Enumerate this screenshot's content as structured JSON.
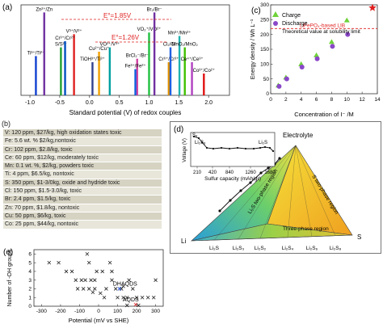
{
  "panel_a": {
    "label": "(a)",
    "xlabel": "Standard potential (V) of redox couples",
    "ticks": [
      "-1.0",
      "-0.5",
      "0.0",
      "0.5",
      "1.0",
      "1.5",
      "2.0"
    ],
    "annotations": [
      {
        "text": "E°=1.85V",
        "color": "#e02020"
      },
      {
        "text": "E°=1.26V",
        "color": "#e02020"
      }
    ],
    "chart_data": {
      "type": "bar",
      "xlim": [
        -1.15,
        2.35
      ],
      "couples": [
        {
          "label": "Ti³⁺/Ti²⁺",
          "x": -0.9,
          "h": 0.45,
          "color": "#1040d0"
        },
        {
          "label": "S/S²⁻",
          "x": -0.48,
          "h": 0.55,
          "color": "#20a030"
        },
        {
          "label": "Zn²⁺/Zn",
          "x": -0.76,
          "h": 0.95,
          "color": "#7030a0"
        },
        {
          "label": "V³⁺/V²⁺",
          "x": -0.26,
          "h": 0.7,
          "color": "#e02020"
        },
        {
          "label": "Cr³⁺/Cr²⁺",
          "x": -0.41,
          "h": 0.62,
          "color": "#0050c0"
        },
        {
          "label": "Cu²⁺/Cu⁺",
          "x": 0.16,
          "h": 0.5,
          "color": "#f0a000"
        },
        {
          "label": "TiOH³⁺/Ti³⁺",
          "x": 0.05,
          "h": 0.38,
          "color": "#304090"
        },
        {
          "label": "VO²⁺/V³⁺",
          "x": 0.34,
          "h": 0.55,
          "color": "#00a0a0"
        },
        {
          "label": "BrCl₂⁻/Br⁻",
          "x": 0.8,
          "h": 0.42,
          "color": "#d040a0"
        },
        {
          "label": "Fe³⁺/Fe²⁺",
          "x": 0.77,
          "h": 0.3,
          "color": "#1060e0"
        },
        {
          "label": "VO₂⁺/VO²⁺",
          "x": 1.0,
          "h": 0.72,
          "color": "#20c040"
        },
        {
          "label": "Br₂/Br⁻",
          "x": 1.09,
          "h": 0.95,
          "color": "#7030a0"
        },
        {
          "label": "Cr⁶⁺/Cr³⁺",
          "x": 1.33,
          "h": 0.38,
          "color": "#e09000"
        },
        {
          "label": "Cl₂/Cl⁻",
          "x": 1.36,
          "h": 0.55,
          "color": "#2060e0"
        },
        {
          "label": "Mn³⁺/Mn²⁺",
          "x": 1.51,
          "h": 0.68,
          "color": "#20b0b0"
        },
        {
          "label": "MnO₂/MnO₂",
          "x": 1.6,
          "h": 0.55,
          "color": "#40c000"
        },
        {
          "label": "Ce⁴⁺/Ce³⁺",
          "x": 1.72,
          "h": 0.38,
          "color": "#b040c0"
        },
        {
          "label": "Co³⁺/Co²⁺",
          "x": 1.92,
          "h": 0.25,
          "color": "#e01010"
        }
      ]
    }
  },
  "panel_b": {
    "label": "(b)",
    "rows": [
      "V: 120 ppm, $27/kg, high oxidation states toxic",
      "Fe: 5.6 wt. % $2/kg,nontoxic",
      "Cr: 102 ppm, $2.8/kg, toxic",
      "Ce: 60 ppm, $12/kg, moderately toxic",
      "Mn: 0.1 wt. %, $2/kg, powders toxic",
      "Ti: 4 ppm, $6.5/kg, nontoxic",
      "S: 350 ppm, $1-3/0kg, oxide and hydride toxic",
      "Cl: 150 ppm, $1.5-3.0/kg, toxic",
      "Br: 2.4 ppm, $1.5/kg, toxic",
      "Zn: 70 ppm, $1.8/kg, nontoxic",
      "Cu: 50 ppm, $6/kg, toxic",
      "Co: 25 ppm, $44/kg, nontoxic"
    ]
  },
  "panel_c": {
    "label": "(c)",
    "legend_charge": "Charge",
    "legend_discharge": "Discharge",
    "legend_theory": "Theoretical value at solubility limit",
    "ref_label": "LiFePO₄-based LIB",
    "xlabel": "Concentration of I⁻ /M",
    "ylabel": "Energy density / Wh L⁻¹",
    "xticks": [
      "0",
      "2",
      "4",
      "6",
      "8",
      "10",
      "12",
      "14"
    ],
    "yticks": [
      "0",
      "50",
      "100",
      "150",
      "200",
      "250",
      "300"
    ],
    "chart_data": {
      "type": "scatter",
      "xlim": [
        0,
        14
      ],
      "ylim": [
        0,
        300
      ],
      "charge": [
        [
          1,
          28
        ],
        [
          2,
          55
        ],
        [
          4,
          100
        ],
        [
          6,
          130
        ],
        [
          8,
          175
        ],
        [
          10,
          248
        ]
      ],
      "discharge": [
        [
          1,
          25
        ],
        [
          2,
          50
        ],
        [
          4,
          90
        ],
        [
          6,
          118
        ],
        [
          8,
          160
        ],
        [
          10,
          200
        ]
      ],
      "theory": [
        [
          14,
          290
        ]
      ],
      "reference": 220
    }
  },
  "panel_d": {
    "label": "(d)",
    "inset_ylabel": "Voltage (V)",
    "inset_xlabel": "Sulfur capacity (mAh/gr)",
    "inset_ticks": [
      "210",
      "420",
      "840",
      "1260",
      "1680"
    ],
    "inset_labels": [
      "S₈",
      "Li₂S₈",
      "Li₂S"
    ],
    "electrolyte": "Electrolyte",
    "corner_li": "Li",
    "corner_s": "S",
    "region_left": "Li₂S two-phase region",
    "region_right": "S two-phase region",
    "region_bottom": "Three-phase region",
    "bottom_labels": [
      "Li₂S",
      "Li₂S₃",
      "Li₂S₂",
      "Li₂S₄",
      "Li₂S₆",
      "Li₂S₈"
    ]
  },
  "panel_e": {
    "label": "(e)",
    "xlabel": "Potential (mV vs SHE)",
    "ylabel": "Number of -OH groups",
    "xticks": [
      "-300",
      "-200",
      "-100",
      "0",
      "100",
      "200",
      "300"
    ],
    "yticks": [
      "0",
      "1",
      "2",
      "3",
      "4",
      "5",
      "6"
    ],
    "dhaqds": "DHAQDS",
    "aqds": "AQDS",
    "chart_data": {
      "type": "scatter",
      "xlim": [
        -340,
        340
      ],
      "ylim": [
        0,
        6.5
      ],
      "points": [
        [
          -260,
          5
        ],
        [
          -210,
          5
        ],
        [
          -170,
          4
        ],
        [
          -140,
          4
        ],
        [
          -120,
          3
        ],
        [
          -90,
          3
        ],
        [
          -70,
          3
        ],
        [
          -40,
          3
        ],
        [
          -20,
          3
        ],
        [
          -60,
          6
        ],
        [
          -50,
          5
        ],
        [
          -10,
          4
        ],
        [
          20,
          4
        ],
        [
          60,
          5
        ],
        [
          -110,
          2
        ],
        [
          -80,
          2
        ],
        [
          -50,
          2
        ],
        [
          -30,
          1.6
        ],
        [
          10,
          1.5
        ],
        [
          40,
          2
        ],
        [
          70,
          3
        ],
        [
          90,
          2
        ],
        [
          120,
          2
        ],
        [
          150,
          1
        ],
        [
          -20,
          2
        ],
        [
          30,
          1
        ],
        [
          100,
          1
        ],
        [
          130,
          1
        ],
        [
          160,
          3
        ],
        [
          180,
          2
        ],
        [
          200,
          1
        ],
        [
          230,
          1
        ],
        [
          260,
          1
        ],
        [
          300,
          3
        ],
        [
          130,
          2.3
        ],
        [
          70,
          4
        ],
        [
          150,
          0.1
        ],
        [
          210,
          0.1
        ],
        [
          290,
          1
        ]
      ],
      "dhaqds_point": [
        110,
        2.0
      ],
      "aqds_point": [
        195,
        0.2
      ]
    }
  }
}
